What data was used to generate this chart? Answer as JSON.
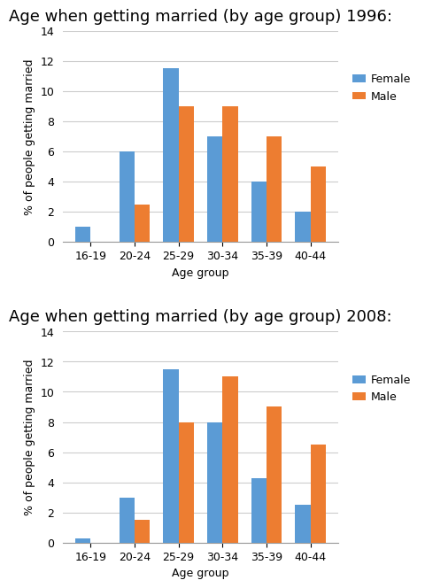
{
  "chart1": {
    "title": "Age when getting married (by age group) 1996:",
    "categories": [
      "16-19",
      "20-24",
      "25-29",
      "30-34",
      "35-39",
      "40-44"
    ],
    "female": [
      1.0,
      6.0,
      11.5,
      7.0,
      4.0,
      2.0
    ],
    "male": [
      0.0,
      2.5,
      9.0,
      9.0,
      7.0,
      5.0
    ]
  },
  "chart2": {
    "title": "Age when getting married (by age group) 2008:",
    "categories": [
      "16-19",
      "20-24",
      "25-29",
      "30-34",
      "35-39",
      "40-44"
    ],
    "female": [
      0.3,
      3.0,
      11.5,
      8.0,
      4.3,
      2.5
    ],
    "male": [
      0.0,
      1.5,
      8.0,
      11.0,
      9.0,
      6.5
    ]
  },
  "female_color": "#5B9BD5",
  "male_color": "#ED7D31",
  "ylabel": "% of people getting married",
  "xlabel": "Age group",
  "ylim": [
    0,
    14
  ],
  "yticks": [
    0,
    2,
    4,
    6,
    8,
    10,
    12,
    14
  ],
  "legend_labels": [
    "Female",
    "Male"
  ],
  "bar_width": 0.35,
  "title_fontsize": 13,
  "axis_label_fontsize": 9,
  "tick_fontsize": 9,
  "legend_fontsize": 9,
  "background_color": "#FFFFFF",
  "grid_color": "#CCCCCC"
}
